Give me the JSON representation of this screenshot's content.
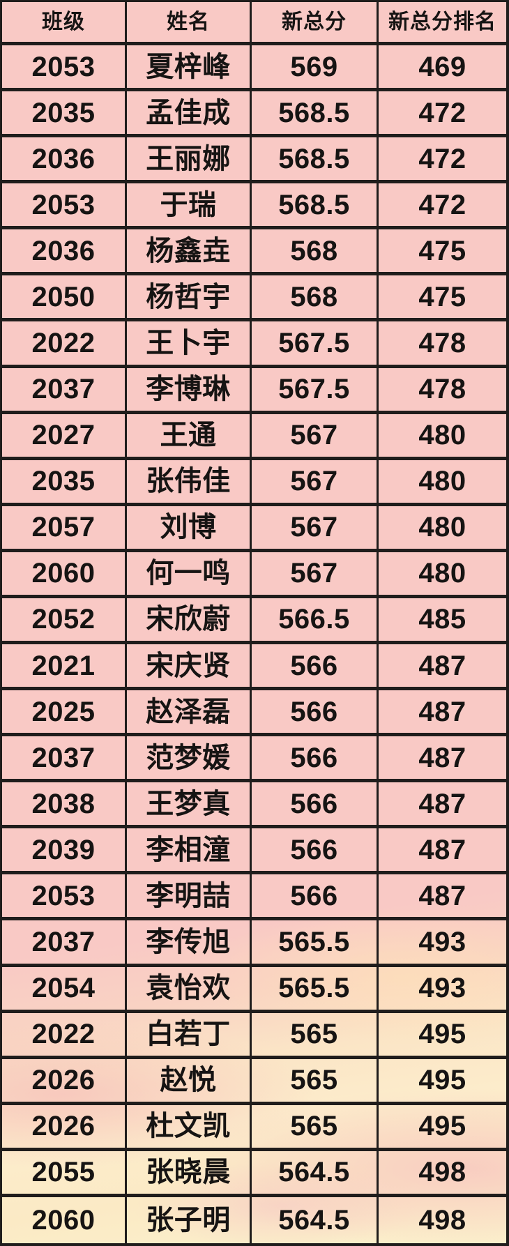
{
  "colors": {
    "cell_pink": "#f9c9c5",
    "cell_cream_bottom": "#fbf1cc",
    "border": "#201d1c",
    "text": "#161413"
  },
  "chart_data": {
    "type": "table",
    "title": "",
    "columns": [
      "班级",
      "姓名",
      "新总分",
      "新总分排名"
    ],
    "rows": [
      [
        "2053",
        "夏梓峰",
        "569",
        "469"
      ],
      [
        "2035",
        "孟佳成",
        "568.5",
        "472"
      ],
      [
        "2036",
        "王丽娜",
        "568.5",
        "472"
      ],
      [
        "2053",
        "于瑞",
        "568.5",
        "472"
      ],
      [
        "2036",
        "杨鑫垚",
        "568",
        "475"
      ],
      [
        "2050",
        "杨哲宇",
        "568",
        "475"
      ],
      [
        "2022",
        "王卜宇",
        "567.5",
        "478"
      ],
      [
        "2037",
        "李博琳",
        "567.5",
        "478"
      ],
      [
        "2027",
        "王通",
        "567",
        "480"
      ],
      [
        "2035",
        "张伟佳",
        "567",
        "480"
      ],
      [
        "2057",
        "刘博",
        "567",
        "480"
      ],
      [
        "2060",
        "何一鸣",
        "567",
        "480"
      ],
      [
        "2052",
        "宋欣蔚",
        "566.5",
        "485"
      ],
      [
        "2021",
        "宋庆贤",
        "566",
        "487"
      ],
      [
        "2025",
        "赵泽磊",
        "566",
        "487"
      ],
      [
        "2037",
        "范梦媛",
        "566",
        "487"
      ],
      [
        "2038",
        "王梦真",
        "566",
        "487"
      ],
      [
        "2039",
        "李相潼",
        "566",
        "487"
      ],
      [
        "2053",
        "李明喆",
        "566",
        "487"
      ],
      [
        "2037",
        "李传旭",
        "565.5",
        "493"
      ],
      [
        "2054",
        "袁怡欢",
        "565.5",
        "493"
      ],
      [
        "2022",
        "白若丁",
        "565",
        "495"
      ],
      [
        "2026",
        "赵悦",
        "565",
        "495"
      ],
      [
        "2026",
        "杜文凯",
        "565",
        "495"
      ],
      [
        "2055",
        "张晓晨",
        "564.5",
        "498"
      ],
      [
        "2060",
        "张子明",
        "564.5",
        "498"
      ]
    ]
  }
}
